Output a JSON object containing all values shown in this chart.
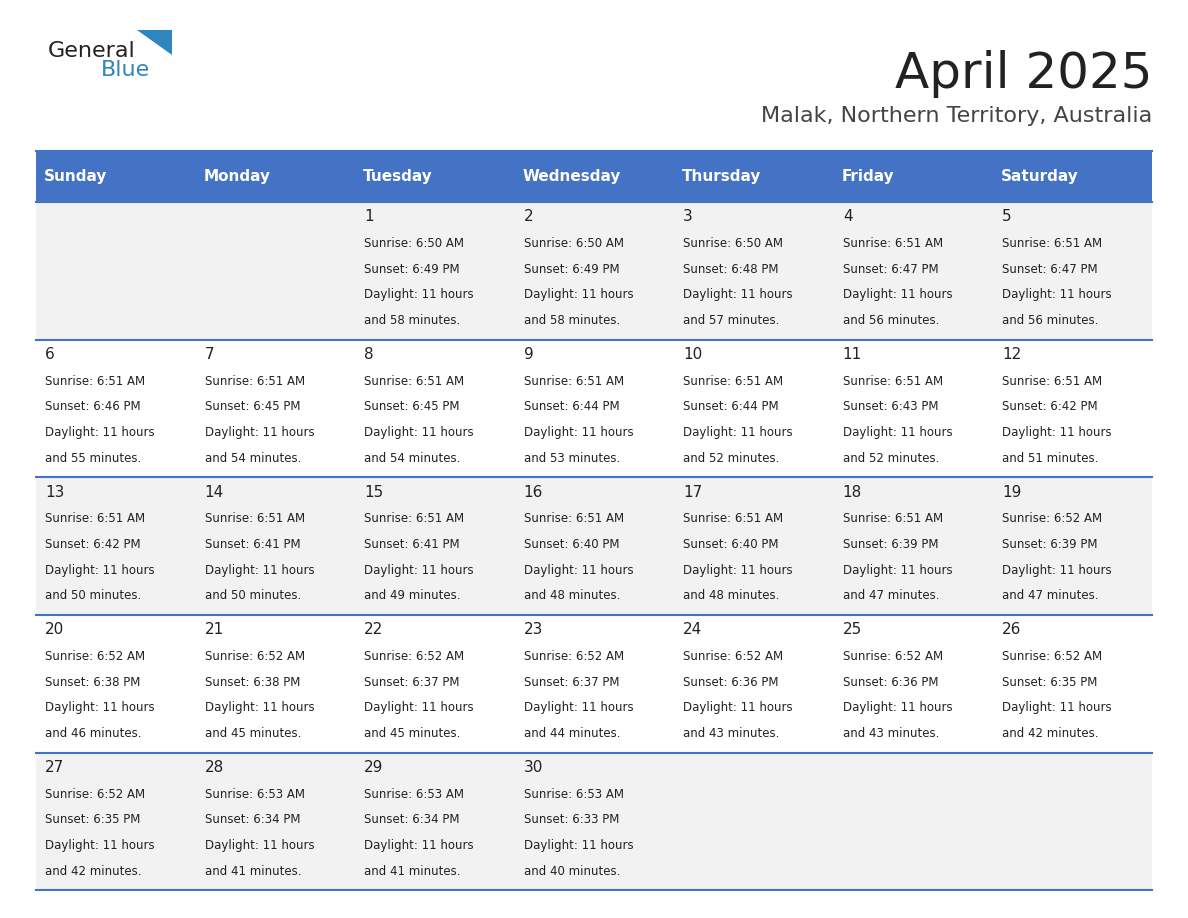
{
  "title": "April 2025",
  "subtitle": "Malak, Northern Territory, Australia",
  "header_color": "#4472C4",
  "header_text_color": "#FFFFFF",
  "days_of_week": [
    "Sunday",
    "Monday",
    "Tuesday",
    "Wednesday",
    "Thursday",
    "Friday",
    "Saturday"
  ],
  "row_bg_odd": "#F2F2F2",
  "row_bg_even": "#FFFFFF",
  "separator_color": "#4472C4",
  "title_color": "#222222",
  "subtitle_color": "#444444",
  "text_color": "#222222",
  "calendar_data": [
    [
      {
        "day": "",
        "sunrise": "",
        "sunset": "",
        "daylight": ""
      },
      {
        "day": "",
        "sunrise": "",
        "sunset": "",
        "daylight": ""
      },
      {
        "day": "1",
        "sunrise": "6:50 AM",
        "sunset": "6:49 PM",
        "hours": "11",
        "minutes": "58"
      },
      {
        "day": "2",
        "sunrise": "6:50 AM",
        "sunset": "6:49 PM",
        "hours": "11",
        "minutes": "58"
      },
      {
        "day": "3",
        "sunrise": "6:50 AM",
        "sunset": "6:48 PM",
        "hours": "11",
        "minutes": "57"
      },
      {
        "day": "4",
        "sunrise": "6:51 AM",
        "sunset": "6:47 PM",
        "hours": "11",
        "minutes": "56"
      },
      {
        "day": "5",
        "sunrise": "6:51 AM",
        "sunset": "6:47 PM",
        "hours": "11",
        "minutes": "56"
      }
    ],
    [
      {
        "day": "6",
        "sunrise": "6:51 AM",
        "sunset": "6:46 PM",
        "hours": "11",
        "minutes": "55"
      },
      {
        "day": "7",
        "sunrise": "6:51 AM",
        "sunset": "6:45 PM",
        "hours": "11",
        "minutes": "54"
      },
      {
        "day": "8",
        "sunrise": "6:51 AM",
        "sunset": "6:45 PM",
        "hours": "11",
        "minutes": "54"
      },
      {
        "day": "9",
        "sunrise": "6:51 AM",
        "sunset": "6:44 PM",
        "hours": "11",
        "minutes": "53"
      },
      {
        "day": "10",
        "sunrise": "6:51 AM",
        "sunset": "6:44 PM",
        "hours": "11",
        "minutes": "52"
      },
      {
        "day": "11",
        "sunrise": "6:51 AM",
        "sunset": "6:43 PM",
        "hours": "11",
        "minutes": "52"
      },
      {
        "day": "12",
        "sunrise": "6:51 AM",
        "sunset": "6:42 PM",
        "hours": "11",
        "minutes": "51"
      }
    ],
    [
      {
        "day": "13",
        "sunrise": "6:51 AM",
        "sunset": "6:42 PM",
        "hours": "11",
        "minutes": "50"
      },
      {
        "day": "14",
        "sunrise": "6:51 AM",
        "sunset": "6:41 PM",
        "hours": "11",
        "minutes": "50"
      },
      {
        "day": "15",
        "sunrise": "6:51 AM",
        "sunset": "6:41 PM",
        "hours": "11",
        "minutes": "49"
      },
      {
        "day": "16",
        "sunrise": "6:51 AM",
        "sunset": "6:40 PM",
        "hours": "11",
        "minutes": "48"
      },
      {
        "day": "17",
        "sunrise": "6:51 AM",
        "sunset": "6:40 PM",
        "hours": "11",
        "minutes": "48"
      },
      {
        "day": "18",
        "sunrise": "6:51 AM",
        "sunset": "6:39 PM",
        "hours": "11",
        "minutes": "47"
      },
      {
        "day": "19",
        "sunrise": "6:52 AM",
        "sunset": "6:39 PM",
        "hours": "11",
        "minutes": "47"
      }
    ],
    [
      {
        "day": "20",
        "sunrise": "6:52 AM",
        "sunset": "6:38 PM",
        "hours": "11",
        "minutes": "46"
      },
      {
        "day": "21",
        "sunrise": "6:52 AM",
        "sunset": "6:38 PM",
        "hours": "11",
        "minutes": "45"
      },
      {
        "day": "22",
        "sunrise": "6:52 AM",
        "sunset": "6:37 PM",
        "hours": "11",
        "minutes": "45"
      },
      {
        "day": "23",
        "sunrise": "6:52 AM",
        "sunset": "6:37 PM",
        "hours": "11",
        "minutes": "44"
      },
      {
        "day": "24",
        "sunrise": "6:52 AM",
        "sunset": "6:36 PM",
        "hours": "11",
        "minutes": "43"
      },
      {
        "day": "25",
        "sunrise": "6:52 AM",
        "sunset": "6:36 PM",
        "hours": "11",
        "minutes": "43"
      },
      {
        "day": "26",
        "sunrise": "6:52 AM",
        "sunset": "6:35 PM",
        "hours": "11",
        "minutes": "42"
      }
    ],
    [
      {
        "day": "27",
        "sunrise": "6:52 AM",
        "sunset": "6:35 PM",
        "hours": "11",
        "minutes": "42"
      },
      {
        "day": "28",
        "sunrise": "6:53 AM",
        "sunset": "6:34 PM",
        "hours": "11",
        "minutes": "41"
      },
      {
        "day": "29",
        "sunrise": "6:53 AM",
        "sunset": "6:34 PM",
        "hours": "11",
        "minutes": "41"
      },
      {
        "day": "30",
        "sunrise": "6:53 AM",
        "sunset": "6:33 PM",
        "hours": "11",
        "minutes": "40"
      },
      {
        "day": "",
        "sunrise": "",
        "sunset": "",
        "hours": "",
        "minutes": ""
      },
      {
        "day": "",
        "sunrise": "",
        "sunset": "",
        "hours": "",
        "minutes": ""
      },
      {
        "day": "",
        "sunrise": "",
        "sunset": "",
        "hours": "",
        "minutes": ""
      }
    ]
  ],
  "logo_text_general": "General",
  "logo_text_blue": "Blue",
  "logo_color_general": "#222222",
  "logo_color_blue": "#2E86C1"
}
